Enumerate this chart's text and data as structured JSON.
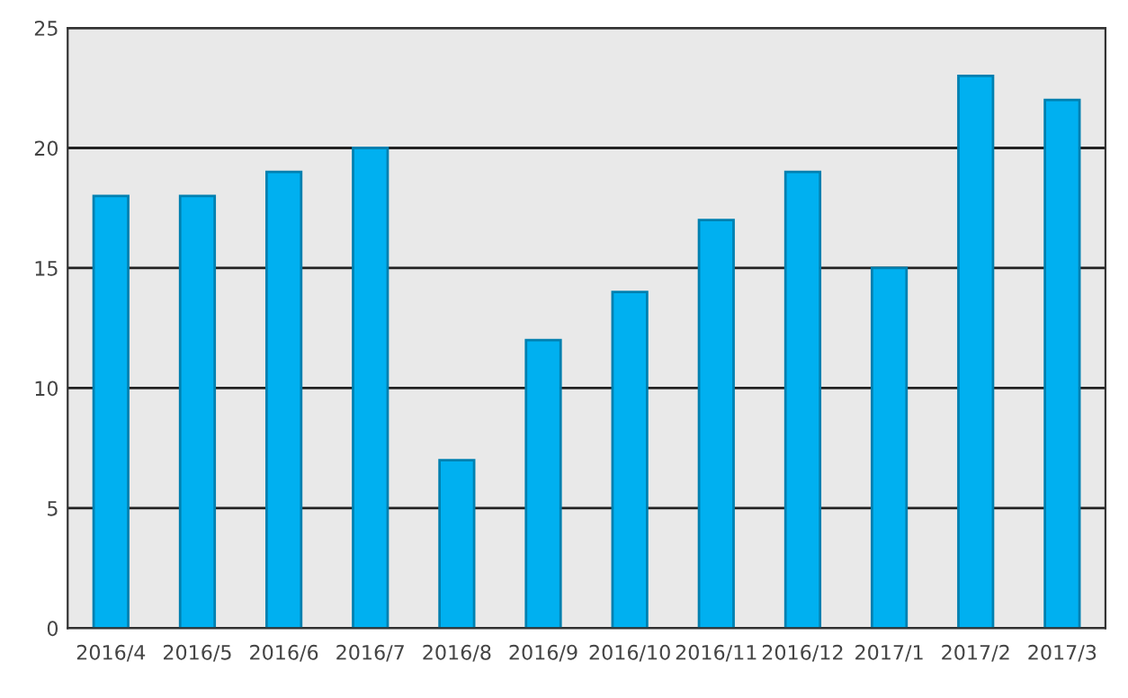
{
  "chart_data": {
    "type": "bar",
    "categories": [
      "2016/4",
      "2016/5",
      "2016/6",
      "2016/7",
      "2016/8",
      "2016/9",
      "2016/10",
      "2016/11",
      "2016/12",
      "2017/1",
      "2017/2",
      "2017/3"
    ],
    "values": [
      18,
      18,
      19,
      20,
      7,
      12,
      14,
      17,
      19,
      15,
      23,
      22
    ],
    "color": "#00b0f0",
    "ylim": [
      0,
      25
    ],
    "yticks": [
      0,
      5,
      10,
      15,
      20,
      25
    ],
    "grid": "y"
  }
}
